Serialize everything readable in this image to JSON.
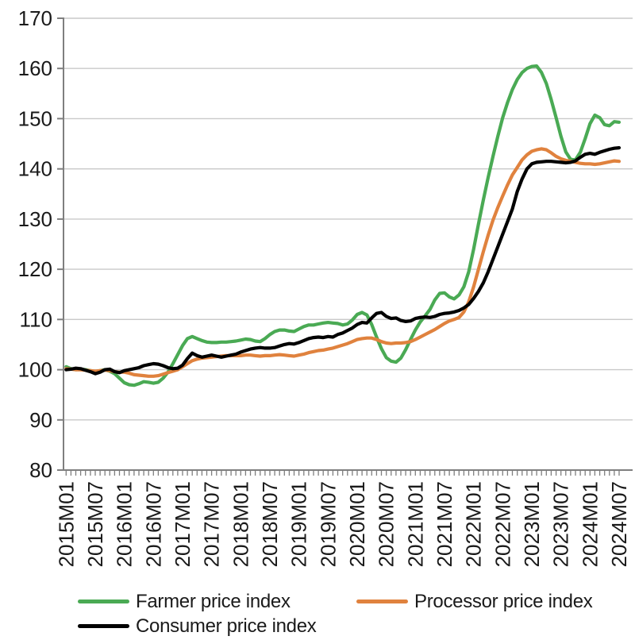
{
  "chart_data": {
    "type": "line",
    "title": "",
    "xlabel": "",
    "ylabel": "",
    "x_unit": "month",
    "x_start": "2015M01",
    "x_end": "2024M07",
    "n_points": 115,
    "ylim": [
      80,
      170
    ],
    "y_ticks": [
      80,
      90,
      100,
      110,
      120,
      130,
      140,
      150,
      160,
      170
    ],
    "grid": "horizontal",
    "legend_position": "bottom",
    "x_tick_labels": [
      "2015M01",
      "2015M07",
      "2016M01",
      "2016M07",
      "2017M01",
      "2017M07",
      "2018M01",
      "2018M07",
      "2019M01",
      "2019M07",
      "2020M01",
      "2020M07",
      "2021M01",
      "2021M07",
      "2022M01",
      "2022M07",
      "2023M01",
      "2023M07",
      "2024M01",
      "2024M07"
    ],
    "axis_color": "#7f7f7f",
    "gridline_color": "#c9c9c9",
    "label_color": "#1a1a1a",
    "series": [
      {
        "name": "Farmer price index",
        "color": "#4aaa54",
        "values": [
          100.6,
          100.2,
          100.0,
          100.1,
          100.0,
          99.8,
          99.6,
          99.8,
          100.0,
          99.7,
          99.2,
          98.3,
          97.4,
          97.0,
          96.9,
          97.2,
          97.6,
          97.5,
          97.3,
          97.5,
          98.3,
          99.5,
          101.2,
          103.0,
          104.8,
          106.2,
          106.6,
          106.2,
          105.8,
          105.5,
          105.4,
          105.4,
          105.5,
          105.5,
          105.6,
          105.7,
          105.9,
          106.1,
          106.0,
          105.7,
          105.6,
          106.2,
          107.0,
          107.6,
          107.9,
          107.9,
          107.7,
          107.6,
          108.1,
          108.6,
          108.9,
          108.9,
          109.1,
          109.3,
          109.4,
          109.3,
          109.2,
          108.9,
          109.1,
          109.9,
          111.0,
          111.4,
          110.9,
          109.0,
          106.5,
          104.2,
          102.4,
          101.7,
          101.5,
          102.3,
          104.0,
          106.0,
          107.9,
          109.5,
          110.7,
          112.0,
          113.9,
          115.2,
          115.3,
          114.5,
          114.1,
          114.9,
          116.5,
          119.5,
          124.0,
          129.0,
          133.8,
          138.3,
          142.5,
          146.5,
          150.2,
          153.2,
          155.8,
          157.8,
          159.2,
          160.0,
          160.4,
          160.5,
          159.2,
          157.0,
          153.8,
          150.2,
          146.5,
          143.4,
          141.9,
          141.8,
          143.3,
          146.0,
          149.0,
          150.7,
          150.2,
          148.8,
          148.6,
          149.4,
          149.3
        ]
      },
      {
        "name": "Processor price index",
        "color": "#e0823e",
        "values": [
          100.2,
          100.1,
          100.0,
          100.0,
          99.9,
          99.8,
          99.7,
          99.8,
          99.9,
          99.8,
          99.6,
          99.5,
          99.5,
          99.3,
          99.0,
          98.9,
          98.8,
          98.7,
          98.7,
          98.8,
          99.1,
          99.4,
          99.7,
          100.0,
          100.6,
          101.2,
          101.8,
          102.1,
          102.3,
          102.4,
          102.5,
          102.6,
          102.7,
          102.8,
          102.8,
          102.8,
          102.8,
          102.9,
          102.9,
          102.8,
          102.7,
          102.8,
          102.8,
          102.9,
          103.0,
          102.9,
          102.8,
          102.7,
          102.9,
          103.1,
          103.4,
          103.6,
          103.8,
          103.9,
          104.1,
          104.3,
          104.6,
          104.9,
          105.2,
          105.6,
          106.0,
          106.2,
          106.3,
          106.3,
          106.0,
          105.6,
          105.3,
          105.2,
          105.3,
          105.3,
          105.4,
          105.6,
          106.0,
          106.5,
          107.0,
          107.5,
          108.0,
          108.6,
          109.2,
          109.7,
          110.0,
          110.4,
          111.5,
          113.5,
          116.5,
          120.0,
          123.5,
          126.8,
          129.8,
          132.3,
          134.6,
          136.8,
          138.8,
          140.3,
          141.8,
          142.8,
          143.5,
          143.8,
          144.0,
          143.8,
          143.2,
          142.5,
          142.0,
          141.7,
          141.5,
          141.3,
          141.1,
          141.0,
          141.0,
          140.9,
          141.0,
          141.2,
          141.4,
          141.6,
          141.5
        ]
      },
      {
        "name": "Consumer price index",
        "color": "#000000",
        "values": [
          100.0,
          100.1,
          100.3,
          100.2,
          99.9,
          99.6,
          99.2,
          99.5,
          100.0,
          100.1,
          99.6,
          99.4,
          99.8,
          100.0,
          100.2,
          100.4,
          100.8,
          101.0,
          101.2,
          101.1,
          100.8,
          100.4,
          100.2,
          100.3,
          100.9,
          102.2,
          103.3,
          102.8,
          102.5,
          102.7,
          102.9,
          102.7,
          102.5,
          102.7,
          102.9,
          103.1,
          103.5,
          103.8,
          104.1,
          104.3,
          104.4,
          104.3,
          104.3,
          104.4,
          104.7,
          105.0,
          105.2,
          105.1,
          105.4,
          105.8,
          106.2,
          106.4,
          106.5,
          106.4,
          106.6,
          106.5,
          107.0,
          107.3,
          107.8,
          108.3,
          109.0,
          109.4,
          109.3,
          110.3,
          111.2,
          111.4,
          110.6,
          110.2,
          110.3,
          109.8,
          109.6,
          109.7,
          110.2,
          110.4,
          110.5,
          110.4,
          110.6,
          111.0,
          111.2,
          111.3,
          111.5,
          111.8,
          112.3,
          113.0,
          114.2,
          115.6,
          117.3,
          119.5,
          122.0,
          124.5,
          127.0,
          129.5,
          132.0,
          135.5,
          138.0,
          140.0,
          141.0,
          141.3,
          141.4,
          141.5,
          141.5,
          141.4,
          141.3,
          141.2,
          141.3,
          141.6,
          142.3,
          142.9,
          143.1,
          142.9,
          143.3,
          143.6,
          143.9,
          144.1,
          144.2
        ]
      }
    ]
  }
}
